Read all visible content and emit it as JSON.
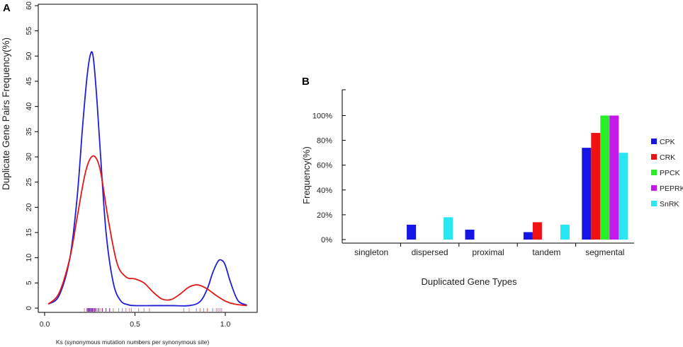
{
  "chart_data": [
    {
      "panel": "A",
      "type": "line",
      "title": "",
      "xlabel": "Ks (synonymous mutation numbers per synonymous site)",
      "ylabel": "Duplicate Gene Pairs Frequency(%)",
      "xlim": [
        0.0,
        1.15
      ],
      "ylim": [
        0,
        60
      ],
      "x_ticks": [
        "0.0",
        "0.5",
        "1.0"
      ],
      "x_tick_values": [
        0.0,
        0.5,
        1.0
      ],
      "y_ticks": [
        "0",
        "5",
        "10",
        "15",
        "20",
        "25",
        "30",
        "35",
        "40",
        "45",
        "50",
        "55",
        "60"
      ],
      "y_tick_values": [
        0,
        5,
        10,
        15,
        20,
        25,
        30,
        35,
        40,
        45,
        50,
        55,
        60
      ],
      "series": [
        {
          "name": "blue",
          "color": "#1f1fd6",
          "x": [
            0.02,
            0.08,
            0.14,
            0.18,
            0.21,
            0.235,
            0.255,
            0.27,
            0.29,
            0.31,
            0.34,
            0.38,
            0.42,
            0.46,
            0.5,
            0.6,
            0.7,
            0.8,
            0.86,
            0.9,
            0.93,
            0.96,
            0.98,
            1.0,
            1.03,
            1.07,
            1.12
          ],
          "y": [
            0.8,
            2.5,
            10,
            22,
            36,
            46,
            50.5,
            49.5,
            41,
            30,
            15,
            5,
            1.5,
            0.7,
            0.5,
            0.5,
            0.5,
            0.5,
            1.3,
            3.8,
            7,
            9.3,
            9.5,
            8.5,
            5,
            1.5,
            0.6
          ]
        },
        {
          "name": "red",
          "color": "#e01818",
          "x": [
            0.02,
            0.08,
            0.14,
            0.18,
            0.22,
            0.25,
            0.28,
            0.31,
            0.35,
            0.4,
            0.45,
            0.5,
            0.55,
            0.6,
            0.65,
            0.7,
            0.75,
            0.8,
            0.85,
            0.9,
            0.95,
            1.0,
            1.05,
            1.12
          ],
          "y": [
            0.8,
            3,
            10,
            18,
            26,
            29.5,
            30,
            27,
            18,
            9,
            6.2,
            5.8,
            5,
            3.2,
            1.8,
            1.7,
            2.8,
            4.2,
            4.6,
            3.8,
            2.5,
            1.4,
            0.8,
            0.5
          ]
        }
      ],
      "rug": {
        "purple": [
          0.235,
          0.24,
          0.245,
          0.25,
          0.255,
          0.26,
          0.265,
          0.27,
          0.275,
          0.28,
          0.29,
          0.3,
          0.32,
          0.34,
          0.36
        ],
        "red": [
          0.22,
          0.27,
          0.31,
          0.38,
          0.41,
          0.45,
          0.47,
          0.52,
          0.55,
          0.58,
          0.77,
          0.8,
          0.86,
          0.9,
          0.95,
          0.97
        ],
        "blue": [
          0.43,
          0.48,
          0.84,
          0.88,
          0.93,
          0.96,
          0.98
        ]
      }
    },
    {
      "panel": "B",
      "type": "bar",
      "title": "",
      "xlabel": "Duplicated  Gene Types",
      "ylabel": "Frequency(%)",
      "ylim": [
        0,
        130
      ],
      "y_ticks": [
        "0%",
        "20%",
        "40%",
        "60%",
        "80%",
        "100%"
      ],
      "y_tick_values": [
        0,
        20,
        40,
        60,
        80,
        100
      ],
      "categories": [
        "singleton",
        "dispersed",
        "proximal",
        "tandem",
        "segmental"
      ],
      "series": [
        {
          "name": "CPK",
          "color": "#1515e6",
          "values": [
            0,
            12,
            8,
            6,
            74
          ]
        },
        {
          "name": "CRK",
          "color": "#f01212",
          "values": [
            0,
            0,
            0,
            14,
            86
          ]
        },
        {
          "name": "PPCK",
          "color": "#27ee27",
          "values": [
            0,
            0,
            0,
            0,
            100
          ]
        },
        {
          "name": "PEPRK",
          "color": "#c418ec",
          "values": [
            0,
            0,
            0,
            0,
            100
          ]
        },
        {
          "name": "SnRK",
          "color": "#28e6f2",
          "values": [
            0,
            18,
            0,
            12,
            70
          ]
        }
      ]
    }
  ],
  "panel_labels": {
    "a": "A",
    "b": "B"
  }
}
